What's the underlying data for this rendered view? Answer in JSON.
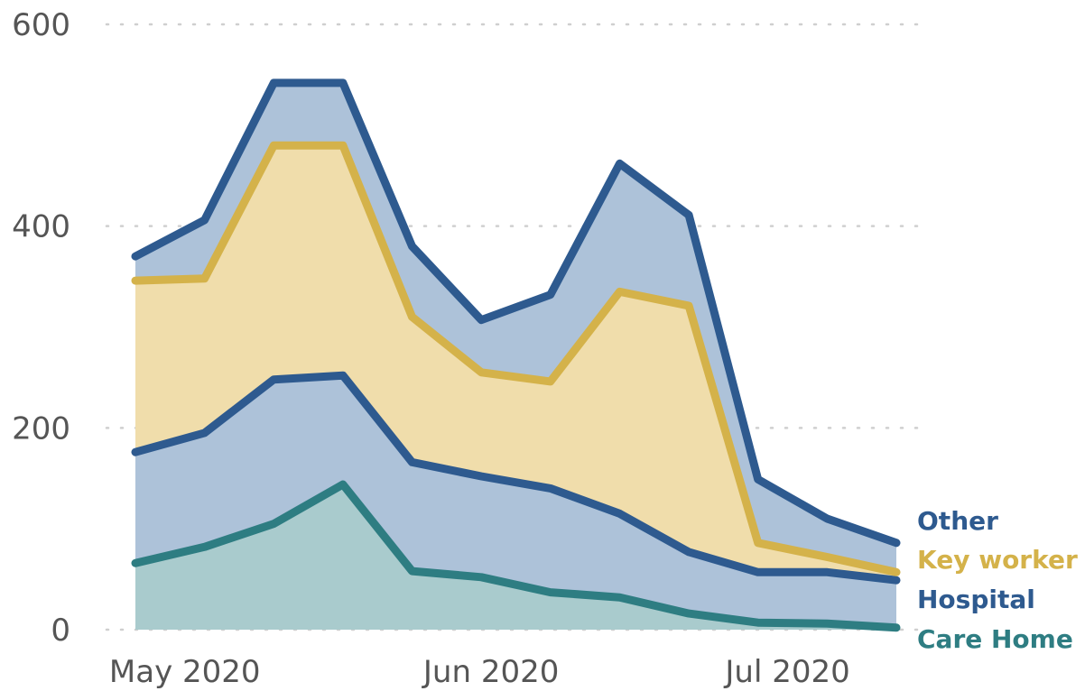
{
  "chart_data": {
    "type": "area",
    "stacked": true,
    "x": [
      "2020-04-26",
      "2020-05-03",
      "2020-05-10",
      "2020-05-17",
      "2020-05-24",
      "2020-05-31",
      "2020-06-07",
      "2020-06-14",
      "2020-06-21",
      "2020-06-28",
      "2020-07-05",
      "2020-07-12"
    ],
    "x_tick_labels": [
      {
        "date": "2020-05-01",
        "label": "May 2020"
      },
      {
        "date": "2020-06-01",
        "label": "Jun 2020"
      },
      {
        "date": "2020-07-01",
        "label": "Jul 2020"
      }
    ],
    "y_ticks": [
      0,
      200,
      400,
      600
    ],
    "ylim": [
      0,
      600
    ],
    "grid": "horizontal dotted",
    "legend_placement": "right, end of lines",
    "series": [
      {
        "name": "Care Home",
        "color": "#2e7d82",
        "values": [
          66,
          82,
          105,
          144,
          58,
          52,
          37,
          32,
          16,
          7,
          6,
          2
        ]
      },
      {
        "name": "Hospital",
        "color": "#2e5a8f",
        "values": [
          110,
          113,
          143,
          108,
          108,
          100,
          103,
          83,
          61,
          50,
          51,
          47
        ]
      },
      {
        "name": "Key worker",
        "color": "#d4b24a",
        "values": [
          170,
          153,
          232,
          228,
          144,
          103,
          106,
          220,
          244,
          29,
          15,
          8
        ]
      },
      {
        "name": "Other",
        "color": "#2e5a8f",
        "values": [
          24,
          58,
          62,
          62,
          70,
          52,
          86,
          127,
          90,
          63,
          38,
          29
        ]
      }
    ],
    "legend_order": [
      "Other",
      "Key worker",
      "Hospital",
      "Care Home"
    ],
    "colors": {
      "blue_fill": "#adc2d9",
      "yellow_fill": "#f0ddab",
      "teal_fill": "#a9cbcd"
    }
  }
}
